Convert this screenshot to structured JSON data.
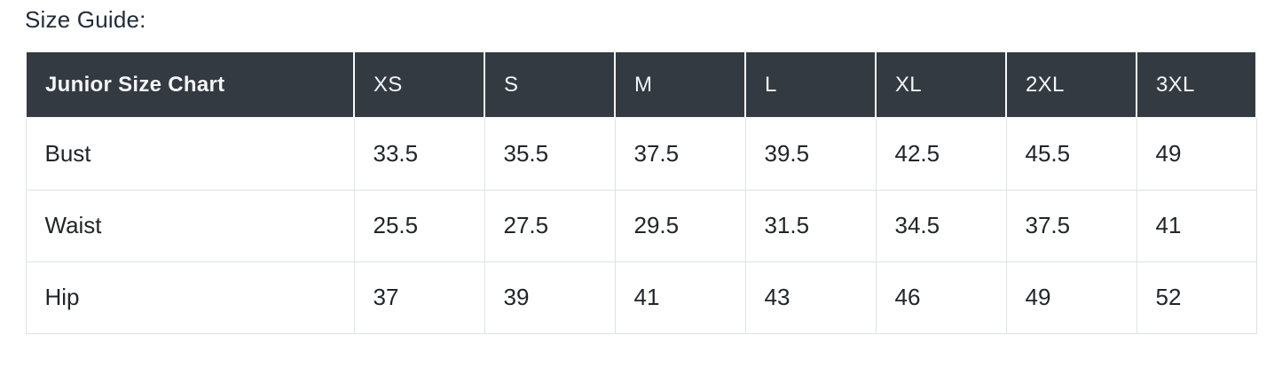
{
  "page_title": "Size Guide:",
  "table": {
    "header": [
      "Junior Size Chart",
      "XS",
      "S",
      "M",
      "L",
      "XL",
      "2XL",
      "3XL"
    ],
    "rows": [
      {
        "label": "Bust",
        "values": [
          "33.5",
          "35.5",
          "37.5",
          "39.5",
          "42.5",
          "45.5",
          "49"
        ]
      },
      {
        "label": "Waist",
        "values": [
          "25.5",
          "27.5",
          "29.5",
          "31.5",
          "34.5",
          "37.5",
          "41"
        ]
      },
      {
        "label": "Hip",
        "values": [
          "37",
          "39",
          "41",
          "43",
          "46",
          "49",
          "52"
        ]
      }
    ]
  },
  "colors": {
    "header_bg": "#343a42",
    "header_text": "#f5f6f8",
    "body_text": "#212529",
    "border_light": "#dee2e6",
    "header_divider": "#f7f8f9",
    "title_color": "#232c3d",
    "page_bg": "#ffffff"
  }
}
